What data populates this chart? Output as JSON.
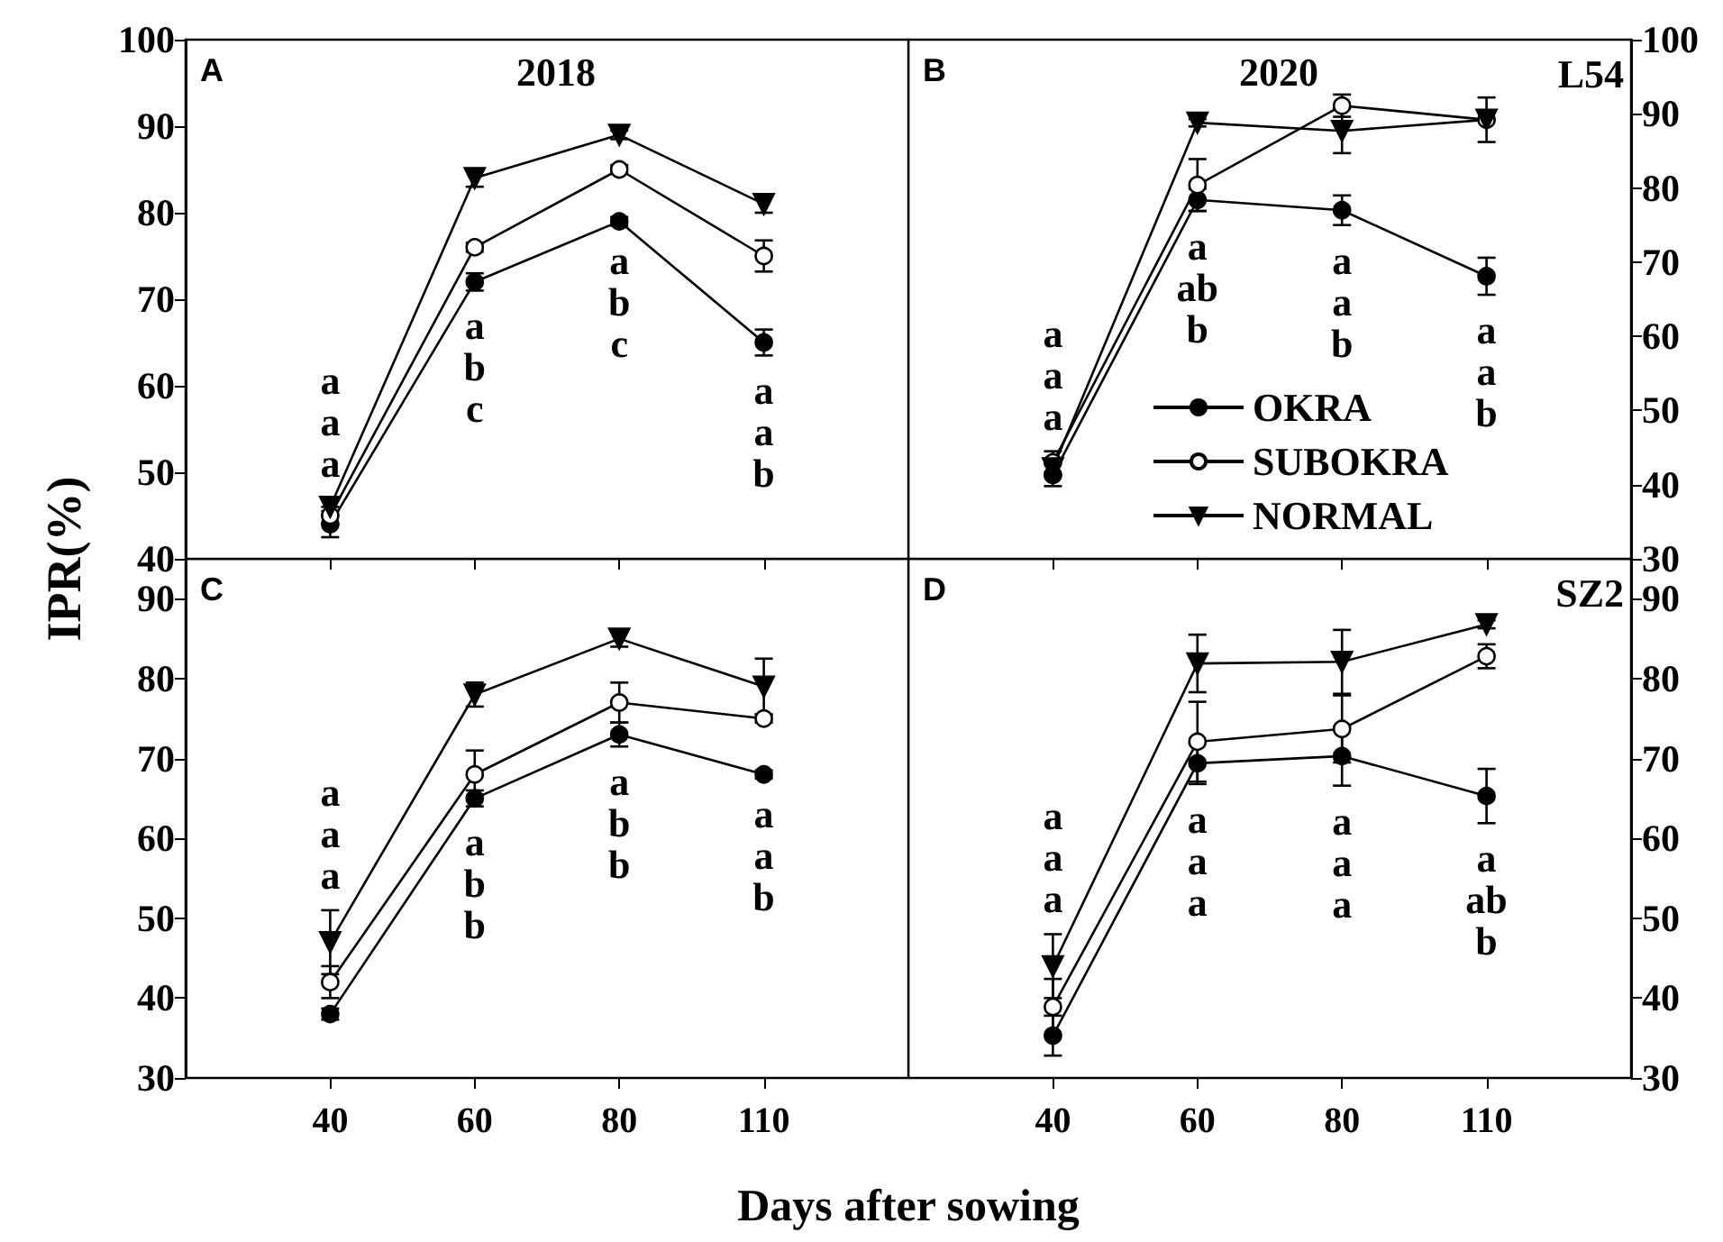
{
  "chart_data": [
    {
      "type": "line",
      "title": "2018",
      "ylabel": "IPR(%)",
      "categories": [
        "40",
        "60",
        "80",
        "110"
      ],
      "ylim": [
        40,
        100
      ],
      "yticks": [
        40,
        50,
        60,
        70,
        80,
        90,
        100
      ],
      "tick_labels": "y",
      "legend": false,
      "line_style": "solid",
      "series": [
        {
          "color": "#000000",
          "marker": "circle",
          "values": [
            44,
            72,
            79,
            65
          ],
          "errors": [
            1.5,
            1,
            0.5,
            1.5
          ]
        },
        {
          "color": "#000000",
          "marker": "circle",
          "values": [
            45,
            76,
            85,
            75
          ],
          "errors": [
            1,
            0.5,
            0.5,
            1.8
          ]
        },
        {
          "color": "#000000",
          "marker": "triangle",
          "values": [
            46,
            84,
            89,
            81
          ],
          "errors": [
            1,
            1,
            0.5,
            1
          ]
        }
      ],
      "annotations": [
        "A",
        "a\na\na",
        "a\nb\nc",
        "a\nb\nc",
        "a\na\nb"
      ]
    },
    {
      "type": "line",
      "title": "2020",
      "categories": [
        "40",
        "60",
        "80",
        "110"
      ],
      "ylim": [
        30,
        100
      ],
      "yticks": [
        30,
        40,
        50,
        60,
        70,
        80,
        90,
        100
      ],
      "tick_labels": "y",
      "legend": "bottom",
      "line_style": "solid",
      "series": [
        {
          "name": "OKRA",
          "color": "#000000",
          "marker": "circle",
          "values": [
            41.3,
            78.4,
            77,
            68.1
          ],
          "errors": [
            1.5,
            1.5,
            2,
            2.5
          ]
        },
        {
          "name": "SUBOKRA",
          "color": "#000000",
          "marker": "circle",
          "values": [
            43,
            80.4,
            91.1,
            89.2
          ],
          "errors": [
            1.5,
            3.5,
            1.5,
            3
          ]
        },
        {
          "name": "NORMAL",
          "color": "#000000",
          "marker": "triangle",
          "values": [
            42.2,
            88.8,
            87.7,
            89.2
          ],
          "errors": [
            1,
            0.5,
            3,
            null
          ]
        }
      ],
      "annotations": [
        "B",
        "L54",
        "a\na\na",
        "a\nab\nb",
        "a\na\nb",
        "a\na\nb"
      ]
    },
    {
      "type": "line",
      "xlabel": "Days after sowing",
      "categories": [
        "40",
        "60",
        "80",
        "110"
      ],
      "ylim": [
        30,
        95
      ],
      "yticks": [
        30,
        40,
        50,
        60,
        70,
        80,
        90
      ],
      "legend": false,
      "line_style": "solid",
      "series": [
        {
          "color": "#000000",
          "marker": "circle",
          "values": [
            38,
            65,
            73,
            68
          ],
          "errors": [
            0.7,
            1,
            1.5,
            0.5
          ]
        },
        {
          "color": "#000000",
          "marker": "circle",
          "values": [
            42,
            68,
            77,
            75
          ],
          "errors": [
            2,
            3,
            2.5,
            0.5
          ]
        },
        {
          "color": "#000000",
          "marker": "triangle",
          "values": [
            47,
            78,
            85,
            79
          ],
          "errors": [
            4,
            1.5,
            1,
            3.5
          ]
        }
      ],
      "annotations": [
        "C",
        "a\na\na",
        "a\nb\nb",
        "a\nb\nb",
        "a\na\nb"
      ]
    },
    {
      "type": "line",
      "categories": [
        "40",
        "60",
        "80",
        "110"
      ],
      "ylim": [
        30,
        95
      ],
      "yticks": [
        30,
        40,
        50,
        60,
        70,
        80,
        90
      ],
      "legend": false,
      "line_style": "solid",
      "series": [
        {
          "color": "#000000",
          "marker": "circle",
          "values": [
            35.3,
            69.4,
            70.3,
            65.3
          ],
          "errors": [
            2.5,
            2.6,
            3.7,
            3.4
          ]
        },
        {
          "color": "#000000",
          "marker": "circle",
          "values": [
            38.9,
            72.1,
            73.7,
            82.8
          ],
          "errors": [
            3.5,
            5,
            4.2,
            1.5
          ]
        },
        {
          "color": "#000000",
          "marker": "triangle",
          "values": [
            44,
            81.9,
            82.1,
            86.8
          ],
          "errors": [
            4,
            3.6,
            4,
            0.5
          ]
        }
      ],
      "annotations": [
        "D",
        "SZ2",
        "a\na\na",
        "a\na\na",
        "a\na\na",
        "a\nab\nb"
      ]
    }
  ]
}
